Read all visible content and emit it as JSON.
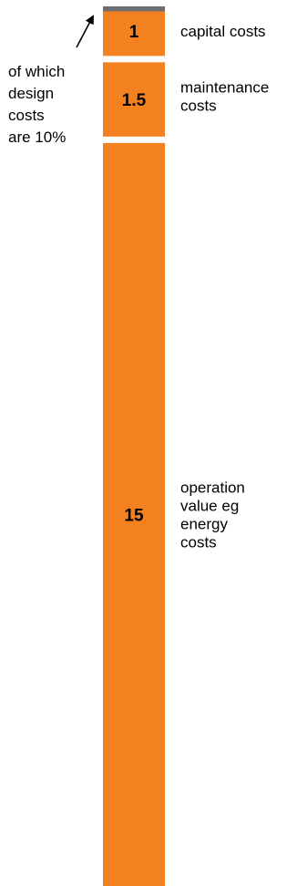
{
  "chart_data": {
    "type": "bar",
    "stacked": true,
    "segments": [
      {
        "value": 1,
        "value_label": "1",
        "label_lines": [
          "capital costs"
        ]
      },
      {
        "value": 1.5,
        "value_label": "1.5",
        "label_lines": [
          "maintenance",
          "costs"
        ]
      },
      {
        "value": 15,
        "value_label": "15",
        "label_lines": [
          "operation",
          "value eg",
          "energy",
          "costs"
        ]
      }
    ],
    "highlight": {
      "of_segment": 0,
      "fraction": 0.1
    },
    "annotation": {
      "lines": [
        "of which",
        "design",
        "costs",
        "are 10%"
      ]
    },
    "colors": {
      "bar": "#F48120",
      "highlight": "#6D6E71",
      "text": "#000000"
    }
  }
}
